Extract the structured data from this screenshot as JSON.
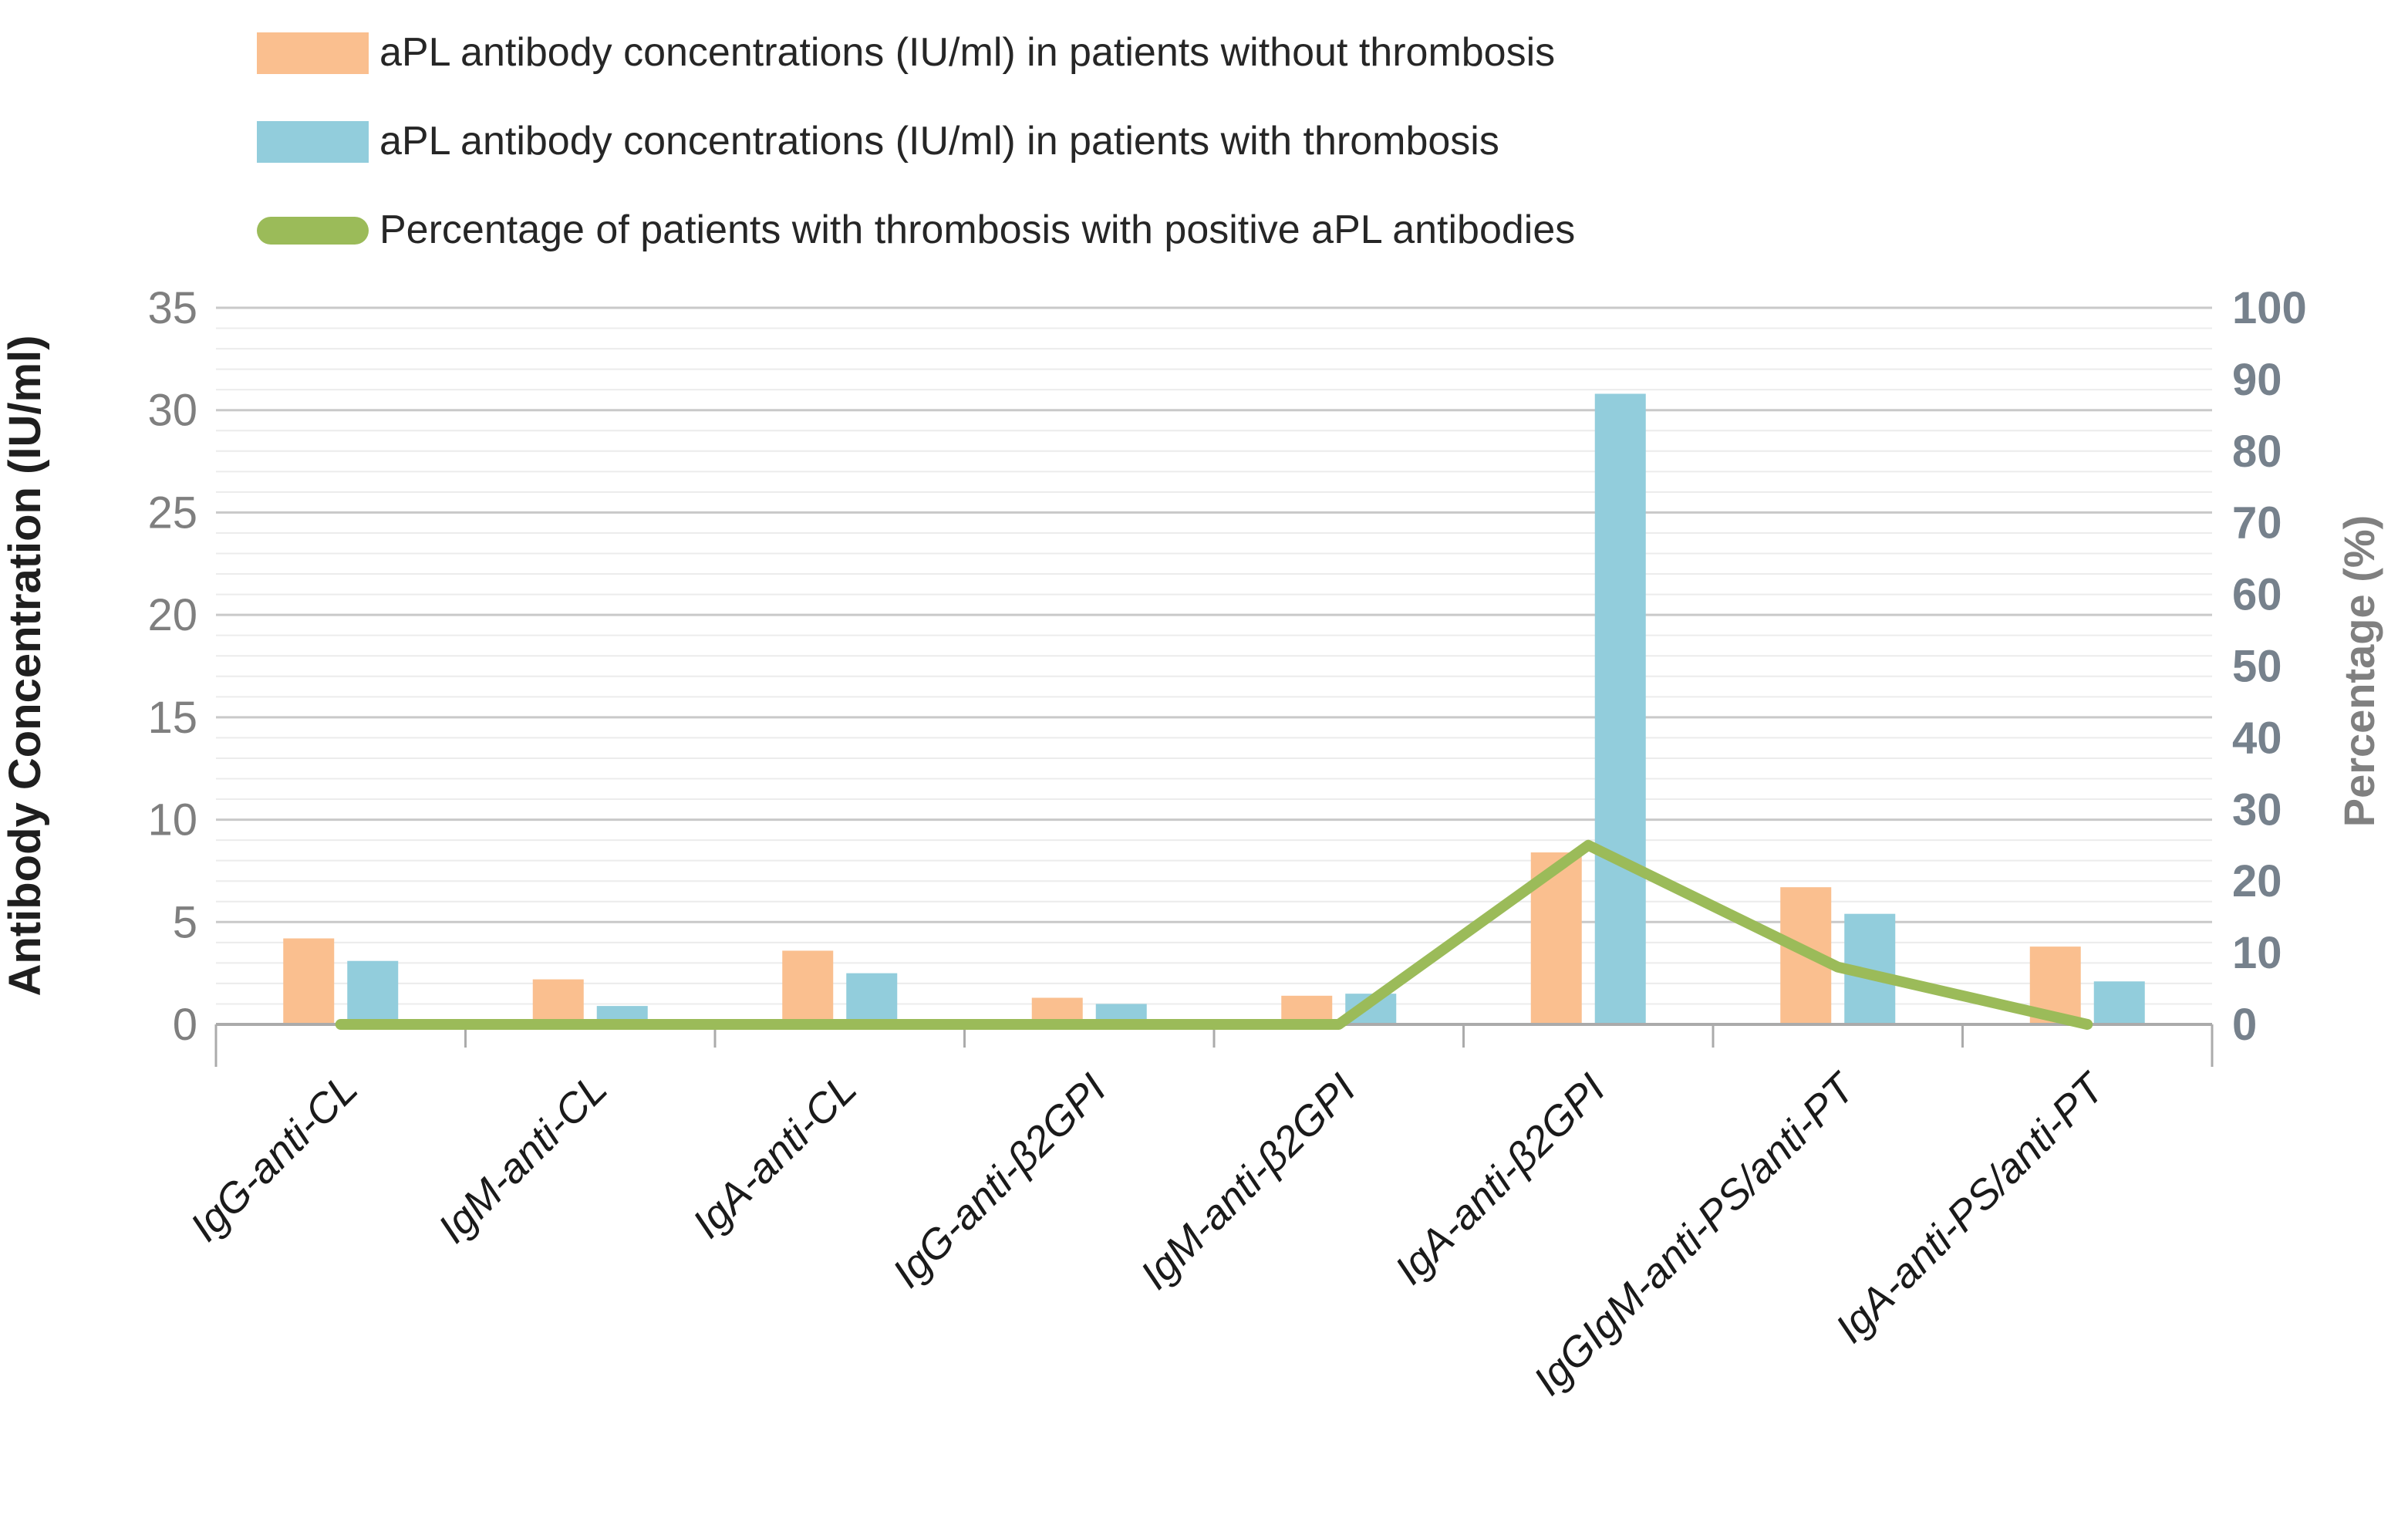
{
  "legend": {
    "items": [
      {
        "label": "aPL antibody concentrations (IU/ml) in patients without thrombosis",
        "color": "#FABF8F",
        "shape": "bar"
      },
      {
        "label": "aPL antibody concentrations (IU/ml) in patients with thrombosis",
        "color": "#92CDDC",
        "shape": "bar"
      },
      {
        "label": "Percentage of patients with thrombosis with positive aPL antibodies",
        "color": "#9BBB59",
        "shape": "line"
      }
    ]
  },
  "chart_data": {
    "type": "combo-bar-line",
    "categories": [
      "IgG-anti-CL",
      "IgM-anti-CL",
      "IgA-anti-CL",
      "IgG-anti-β2GPI",
      "IgM-anti-β2GPI",
      "IgA-anti-β2GPI",
      "IgGIgM-anti-PS/anti-PT",
      "IgA-anti-PS/anti-PT"
    ],
    "series": [
      {
        "name": "aPL antibody concentrations (IU/ml) in patients without thrombosis",
        "type": "bar",
        "axis": "left",
        "color": "#FABF8F",
        "values": [
          4.2,
          2.2,
          3.6,
          1.3,
          1.4,
          8.4,
          6.7,
          3.8
        ]
      },
      {
        "name": "aPL antibody concentrations (IU/ml) in patients with thrombosis",
        "type": "bar",
        "axis": "left",
        "color": "#92CDDC",
        "values": [
          3.1,
          0.9,
          2.5,
          1.0,
          1.5,
          30.8,
          5.4,
          2.1
        ]
      },
      {
        "name": "Percentage of patients with thrombosis with positive aPL antibodies",
        "type": "line",
        "axis": "right",
        "color": "#9BBB59",
        "values": [
          0,
          0,
          0,
          0,
          0,
          25,
          8,
          0
        ]
      }
    ],
    "left_axis": {
      "title": "Antibody Concentration (IU/ml)",
      "min": 0,
      "max": 35,
      "major_step": 5,
      "minor_step": 1,
      "tick_labels": [
        "0",
        "5",
        "10",
        "15",
        "20",
        "25",
        "30",
        "35"
      ]
    },
    "right_axis": {
      "title": "Percentage (%)",
      "min": 0,
      "max": 100,
      "step": 10,
      "tick_labels": [
        "0",
        "10",
        "20",
        "30",
        "40",
        "50",
        "60",
        "70",
        "80",
        "90",
        "100"
      ]
    },
    "grid": {
      "minor": true,
      "major": true
    },
    "legend_position": "top-left",
    "colors": {
      "bar_without_thrombosis": "#FABF8F",
      "bar_with_thrombosis": "#92CDDC",
      "line_percentage": "#9BBB59",
      "minor_grid": "#ECECEC",
      "major_grid": "#C9C9C9",
      "axis_line": "#ABABAB",
      "left_tick_text": "#7F7F7F",
      "right_tick_text": "#76818C",
      "left_title_text": "#1F1F1F",
      "right_title_text": "#808080",
      "category_text": "#1A1A1A"
    }
  }
}
